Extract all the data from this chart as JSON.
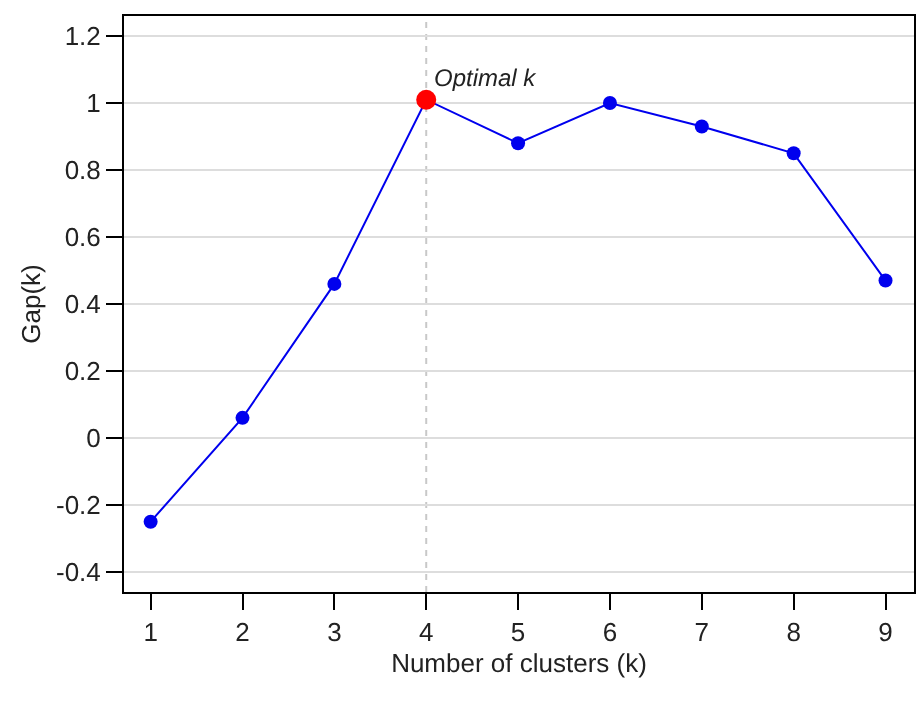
{
  "chart_data": {
    "type": "line",
    "xlabel": "Number of clusters (k)",
    "ylabel": "Gap(k)",
    "x": [
      1,
      2,
      3,
      4,
      5,
      6,
      7,
      8,
      9
    ],
    "series": [
      {
        "color": "#0000ee",
        "values": [
          -0.25,
          0.06,
          0.46,
          1.01,
          0.88,
          1.0,
          0.93,
          0.85,
          0.47
        ],
        "marker": "circle"
      },
      {
        "type": "scatter",
        "color": "#ff0000",
        "x": [
          4
        ],
        "values": [
          1.01
        ],
        "marker": "circle"
      }
    ],
    "xlim": [
      0.71,
      9.31
    ],
    "xticks": [
      1,
      2,
      3,
      4,
      5,
      6,
      7,
      8,
      9
    ],
    "ylim": [
      -0.46,
      1.26
    ],
    "yticks": [
      -0.4,
      -0.2,
      0,
      0.2,
      0.4,
      0.6,
      0.8,
      1,
      1.2
    ],
    "grid": "y",
    "ref_lines": [
      {
        "axis": "x",
        "value": 4,
        "color": "#c8c8c8",
        "line_style": "dotted"
      }
    ],
    "annotations": [
      {
        "text": "Optimal k",
        "x": 4,
        "y": 1.01
      }
    ]
  }
}
